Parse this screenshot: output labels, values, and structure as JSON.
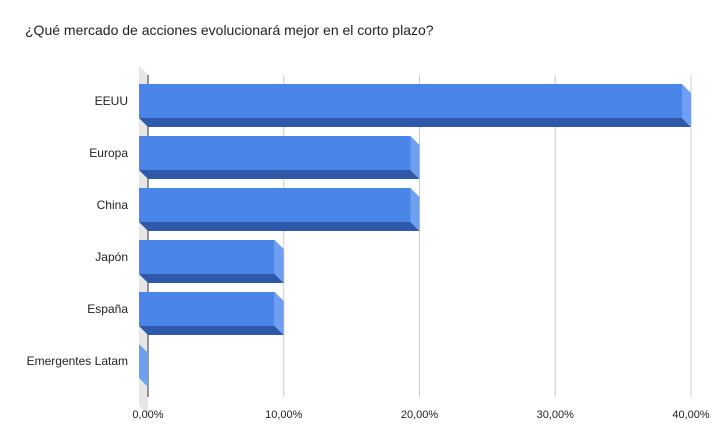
{
  "chart_data": {
    "type": "bar",
    "orientation": "horizontal",
    "style": "3d",
    "title": "¿Qué mercado de acciones evolucionará mejor en el corto plazo?",
    "xlabel": "",
    "ylabel": "",
    "categories": [
      "EEUU",
      "Europa",
      "China",
      "Japón",
      "España",
      "Emergentes Latam"
    ],
    "values": [
      0.4,
      0.2,
      0.2,
      0.1,
      0.1,
      0.0
    ],
    "xlim": [
      0,
      0.4
    ],
    "x_ticks": [
      0,
      0.1,
      0.2,
      0.3,
      0.4
    ],
    "x_tick_labels": [
      "0,00%",
      "10,00%",
      "20,00%",
      "30,00%",
      "40,00%"
    ],
    "grid": "vertical",
    "legend": "none",
    "colors": {
      "bar": "#4a86e8",
      "bar_side": "#6f9ff0",
      "bar_bottom": "#2f58a8",
      "grid": "#cccccc",
      "floor": "#e6e6e6"
    }
  }
}
